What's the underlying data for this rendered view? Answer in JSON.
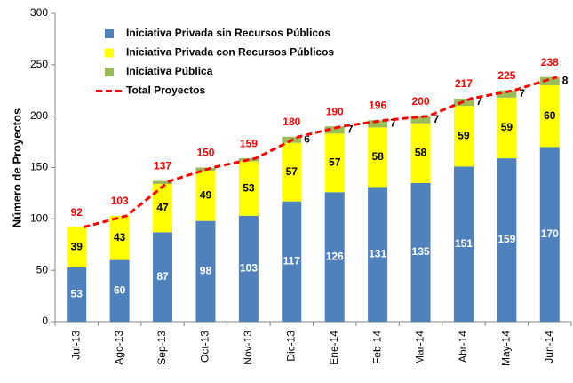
{
  "chart_data": {
    "type": "bar",
    "categories": [
      "Jul-13",
      "Ago-13",
      "Sep-13",
      "Oct-13",
      "Nov-13",
      "Dic-13",
      "Ene-14",
      "Feb-14",
      "Mar-14",
      "Abr-14",
      "May-14",
      "Jun-14"
    ],
    "series": [
      {
        "name": "Iniciativa Privada sin Recursos Públicos",
        "color": "#4f81bd",
        "values": [
          53,
          60,
          87,
          98,
          103,
          117,
          126,
          131,
          135,
          151,
          159,
          170
        ]
      },
      {
        "name": "Iniciativa Privada con Recursos Públicos",
        "color": "#ffff00",
        "values": [
          39,
          43,
          47,
          49,
          53,
          57,
          57,
          58,
          58,
          59,
          59,
          60
        ]
      },
      {
        "name": "Iniciativa Pública",
        "color": "#9bbb59",
        "values": [
          0,
          0,
          3,
          3,
          3,
          6,
          7,
          7,
          7,
          7,
          7,
          8
        ],
        "value_labels": [
          null,
          null,
          null,
          null,
          null,
          "6",
          "7",
          "7",
          "7",
          "7",
          "7",
          "8"
        ]
      },
      {
        "name": "Total Proyectos",
        "type": "line",
        "color": "#ff0000",
        "values": [
          92,
          103,
          137,
          150,
          159,
          180,
          190,
          196,
          200,
          217,
          225,
          238
        ]
      }
    ],
    "ylabel": "Número de Proyectos",
    "ylim": [
      0,
      300
    ],
    "yticks": [
      0,
      50,
      100,
      150,
      200,
      250,
      300
    ],
    "grid": false,
    "stacked": true
  }
}
